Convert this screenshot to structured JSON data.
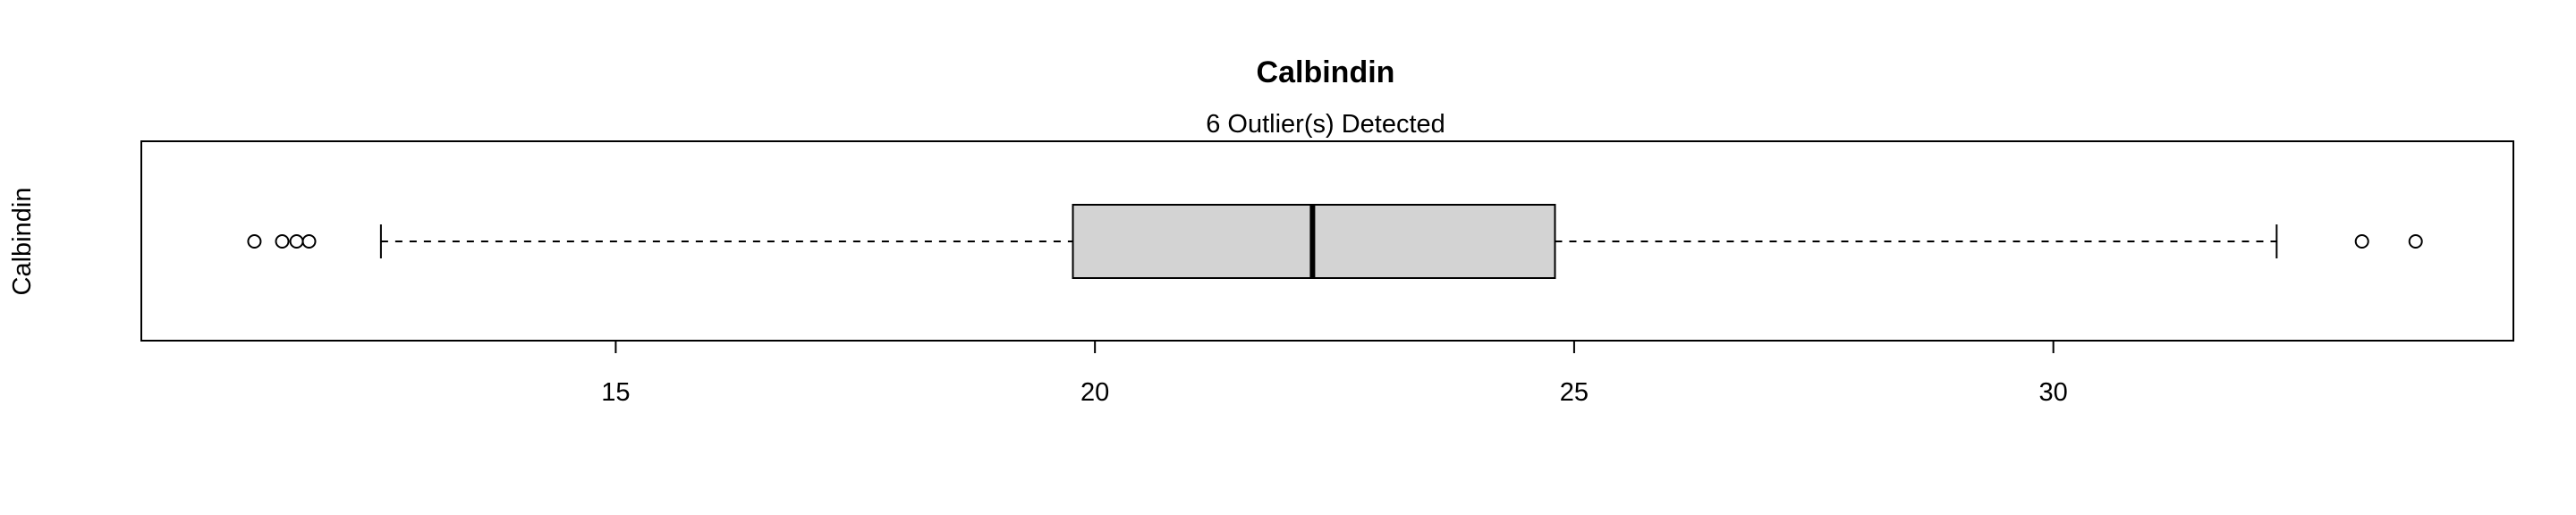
{
  "chart_data": {
    "type": "boxplot",
    "orientation": "horizontal",
    "title": "Calbindin",
    "subtitle": "6 Outlier(s) Detected",
    "ylabel": "Calbindin",
    "xlabel": "",
    "xlim": [
      10.05,
      34.8
    ],
    "xticks": [
      15,
      20,
      25,
      30
    ],
    "xtick_labels": [
      "15",
      "20",
      "25",
      "30"
    ],
    "grid": false,
    "box": {
      "whisker_low": 12.55,
      "q1": 19.77,
      "median": 22.27,
      "q3": 24.8,
      "whisker_high": 32.33,
      "fill": "#d3d3d3"
    },
    "outliers": [
      11.23,
      11.52,
      11.67,
      11.8,
      33.22,
      33.78
    ]
  }
}
